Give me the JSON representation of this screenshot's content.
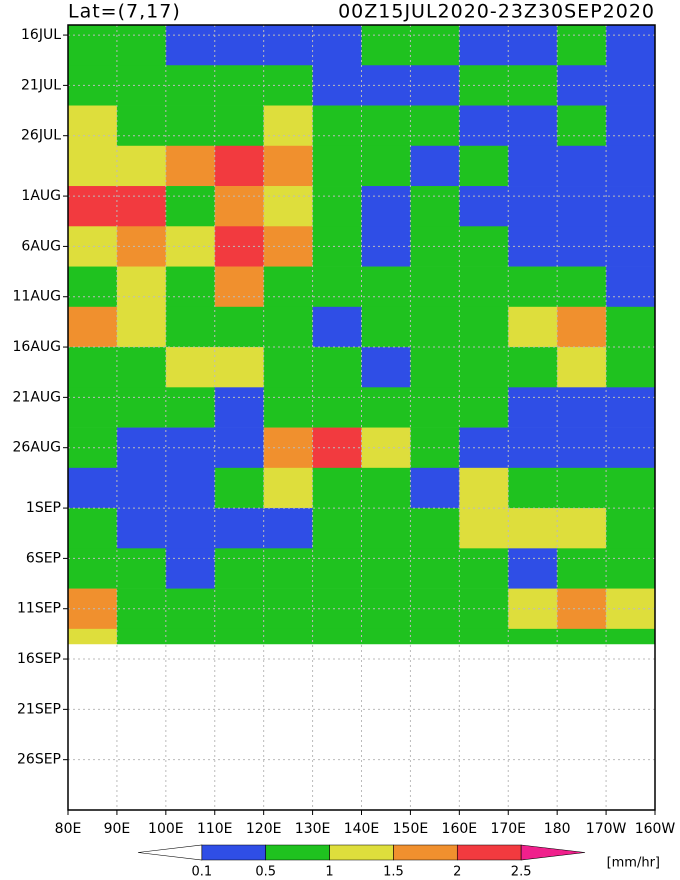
{
  "chart_data": {
    "type": "heatmap",
    "title_left": "Lat=(7,17)",
    "title_right": "00Z15JUL2020-23Z30SEP2020",
    "unit_label": "[mm/hr]",
    "xlim": [
      80,
      200
    ],
    "xticks": [
      {
        "value": 80,
        "label": "80E"
      },
      {
        "value": 90,
        "label": "90E"
      },
      {
        "value": 100,
        "label": "100E"
      },
      {
        "value": 110,
        "label": "110E"
      },
      {
        "value": 120,
        "label": "120E"
      },
      {
        "value": 130,
        "label": "130E"
      },
      {
        "value": 140,
        "label": "140E"
      },
      {
        "value": 150,
        "label": "150E"
      },
      {
        "value": 160,
        "label": "160E"
      },
      {
        "value": 170,
        "label": "170E"
      },
      180,
      {
        "value": 190,
        "label": "170W"
      },
      {
        "value": 200,
        "label": "160W"
      }
    ],
    "ylim": [
      0,
      78
    ],
    "yticks": [
      {
        "value": 1,
        "label": "16JUL"
      },
      {
        "value": 6,
        "label": "21JUL"
      },
      {
        "value": 11,
        "label": "26JUL"
      },
      {
        "value": 17,
        "label": "1AUG"
      },
      {
        "value": 22,
        "label": "6AUG"
      },
      {
        "value": 27,
        "label": "11AUG"
      },
      {
        "value": 32,
        "label": "16AUG"
      },
      {
        "value": 37,
        "label": "21AUG"
      },
      {
        "value": 42,
        "label": "26AUG"
      },
      {
        "value": 48,
        "label": "1SEP"
      },
      {
        "value": 53,
        "label": "6SEP"
      },
      {
        "value": 58,
        "label": "11SEP"
      },
      {
        "value": 63,
        "label": "16SEP"
      },
      {
        "value": 68,
        "label": "21SEP"
      },
      {
        "value": 73,
        "label": "26SEP"
      }
    ],
    "grid": true,
    "xbins": [
      80,
      90,
      100,
      110,
      120,
      130,
      140,
      150,
      160,
      170,
      180,
      190,
      200
    ],
    "ybins": [
      0,
      4,
      8,
      12,
      16,
      20,
      24,
      28,
      32,
      36,
      40,
      44,
      48,
      52,
      56,
      60,
      61.5
    ],
    "values": [
      [
        0.8,
        0.6,
        0.3,
        0.2,
        0.4,
        0.3,
        0.5,
        0.6,
        0.3,
        0.4,
        0.5,
        0.3
      ],
      [
        0.9,
        0.7,
        0.6,
        0.8,
        0.5,
        0.3,
        0.4,
        0.3,
        0.5,
        0.6,
        0.3,
        0.2
      ],
      [
        1.2,
        0.8,
        0.7,
        0.6,
        1.0,
        0.7,
        0.8,
        0.5,
        0.3,
        0.4,
        0.5,
        0.3
      ],
      [
        1.4,
        1.2,
        1.8,
        2.4,
        1.6,
        0.8,
        0.5,
        0.4,
        0.6,
        0.3,
        0.2,
        0.3
      ],
      [
        2.2,
        2.0,
        0.6,
        1.9,
        1.2,
        0.7,
        0.3,
        0.5,
        0.3,
        0.4,
        0.2,
        0.1
      ],
      [
        1.3,
        1.9,
        1.0,
        2.3,
        1.7,
        0.9,
        0.4,
        0.5,
        0.6,
        0.3,
        0.4,
        0.3
      ],
      [
        0.9,
        1.0,
        0.6,
        1.8,
        0.9,
        0.5,
        0.6,
        0.8,
        0.5,
        0.7,
        0.6,
        0.4
      ],
      [
        1.5,
        1.1,
        0.5,
        0.8,
        0.6,
        0.4,
        0.7,
        0.5,
        0.6,
        1.2,
        1.6,
        0.7
      ],
      [
        0.8,
        0.9,
        1.4,
        1.1,
        0.7,
        0.5,
        0.4,
        0.6,
        0.7,
        0.8,
        1.0,
        0.9
      ],
      [
        0.6,
        0.7,
        0.5,
        0.4,
        0.8,
        0.9,
        0.6,
        0.7,
        0.5,
        0.4,
        0.3,
        0.2
      ],
      [
        0.5,
        0.4,
        0.3,
        0.2,
        1.6,
        2.0,
        1.0,
        0.6,
        0.3,
        0.2,
        0.4,
        0.3
      ],
      [
        0.4,
        0.3,
        0.2,
        0.5,
        1.3,
        0.6,
        0.5,
        0.4,
        1.2,
        0.9,
        0.6,
        0.5
      ],
      [
        0.6,
        0.4,
        0.3,
        0.4,
        0.3,
        0.5,
        0.7,
        0.8,
        1.4,
        1.0,
        1.3,
        0.8
      ],
      [
        0.8,
        0.6,
        0.4,
        0.5,
        0.6,
        0.7,
        0.5,
        0.6,
        0.5,
        0.4,
        0.6,
        0.5
      ],
      [
        1.5,
        0.9,
        0.6,
        0.7,
        0.5,
        0.6,
        0.7,
        0.5,
        0.8,
        1.1,
        1.6,
        1.0
      ],
      [
        1.0,
        0.7,
        0.5,
        0.6,
        0.7,
        0.5,
        0.6,
        0.5,
        0.6,
        0.7,
        0.9,
        0.7
      ]
    ],
    "levels": [
      0.1,
      0.5,
      1,
      1.5,
      2,
      2.5
    ],
    "colors": [
      "#ffffff",
      "#2f4ee6",
      "#1fc21f",
      "#dede3c",
      "#f0902e",
      "#f23a3f",
      "#f0208c"
    ]
  }
}
